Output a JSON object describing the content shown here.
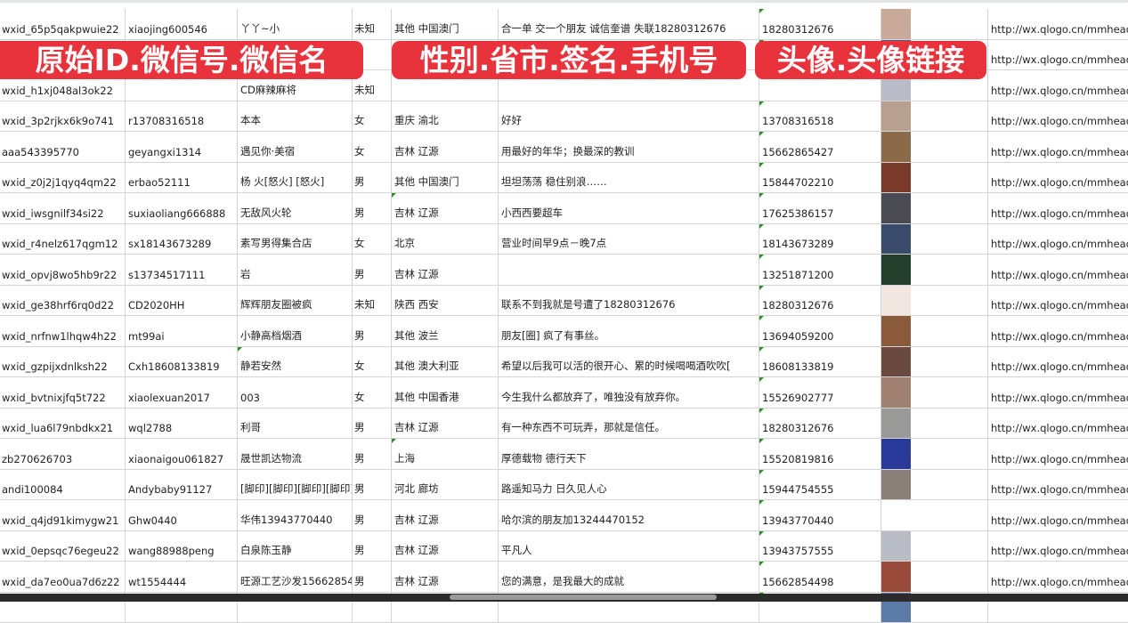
{
  "banners": [
    "原始ID.微信号.微信名",
    "性别.省市.签名.手机号",
    "头像.头像链接"
  ],
  "rows": [
    {
      "id": "wxid_65p5qakpwuie22",
      "wx": "xiaojing600546",
      "name": "丫丫~小",
      "sex": "未知",
      "region": "其他 中国澳门",
      "sign": "合一单 交一个朋友 诚信奎谱 失联18280312676",
      "phone": "18280312676",
      "avatar_color": "#c9a99a",
      "url": "http://wx.qlogo.cn/mmhead"
    },
    {
      "id": "",
      "wx": "",
      "name": "",
      "sex": "",
      "region": "",
      "sign": "",
      "phone": "",
      "avatar_color": "#4a5c8a",
      "url": "http://wx.qlogo.cn/mmhead"
    },
    {
      "id": "wxid_h1xj048al3ok22",
      "wx": "",
      "name": "CD麻辣麻将",
      "sex": "未知",
      "region": "",
      "sign": "",
      "phone": "",
      "avatar_color": "#b8bcc8",
      "url": "http://wx.qlogo.cn/mmhead"
    },
    {
      "id": "wxid_3p2rjkx6k9o741",
      "wx": "r13708316518",
      "name": "本本",
      "sex": "女",
      "region": "重庆 渝北",
      "sign": "好好",
      "phone": "13708316518",
      "avatar_color": "#b8a090",
      "url": "http://wx.qlogo.cn/mmhead"
    },
    {
      "id": "aaa543395770",
      "wx": "geyangxi1314",
      "name": "遇见你·美宿",
      "sex": "女",
      "region": "吉林 辽源",
      "sign": "用最好的年华；换最深的教训",
      "phone": "15662865427",
      "avatar_color": "#8a6a48",
      "url": "http://wx.qlogo.cn/mmhead"
    },
    {
      "id": "wxid_z0j2j1qyq4qm22",
      "wx": "erbao52111",
      "name": "杨 火[怒火] [怒火]",
      "sex": "男",
      "region": "其他 中国澳门",
      "sign": "坦坦荡荡 稳住别浪……",
      "phone": "15844702210",
      "avatar_color": "#7a3a2a",
      "url": "http://wx.qlogo.cn/mmhead"
    },
    {
      "id": "wxid_iwsgnilf34si22",
      "wx": "suxiaoliang666888",
      "name": "无敌风火轮",
      "sex": "男",
      "region": "吉林 辽源",
      "sign": "小西西要超车",
      "phone": "17625386157",
      "avatar_color": "#4a4a52",
      "url": "http://wx.qlogo.cn/mmhead"
    },
    {
      "id": "wxid_r4nelz617qgm12",
      "wx": "sx18143673289",
      "name": "素写男得集合店",
      "sex": "女",
      "region": "北京",
      "sign": "营业时间早9点－晚7点",
      "phone": "18143673289",
      "avatar_color": "#3a4a6a",
      "url": "http://wx.qlogo.cn/mmhead"
    },
    {
      "id": "wxid_opvj8wo5hb9r22",
      "wx": "s13734517111",
      "name": "岩",
      "sex": "男",
      "region": "吉林 辽源",
      "sign": "",
      "phone": "13251871200",
      "avatar_color": "#24402c",
      "url": "http://wx.qlogo.cn/mmhead"
    },
    {
      "id": "wxid_ge38hrf6rq0d22",
      "wx": "CD2020HH",
      "name": "辉辉朋友圈被疯",
      "sex": "未知",
      "region": "陕西 西安",
      "sign": "联系不到我就是号遭了18280312676",
      "phone": "18280312676",
      "avatar_color": "#f2e6e0",
      "url": "http://wx.qlogo.cn/mmhead"
    },
    {
      "id": "wxid_nrfnw1lhqw4h22",
      "wx": "mt99ai",
      "name": "小静高档烟酒",
      "sex": "男",
      "region": "其他 波兰",
      "sign": "朋友[圈] 疯了有事丝。",
      "phone": "13694059200",
      "avatar_color": "#8a5a3a",
      "url": "http://wx.qlogo.cn/mmhead"
    },
    {
      "id": "wxid_gzpijxdnlksh22",
      "wx": "Cxh18608133819",
      "name": "静若安然",
      "sex": "女",
      "region": "其他 澳大利亚",
      "sign": "希望以后我可以活的很开心、累的时候喝喝酒吹吹[",
      "phone": "18608133819",
      "avatar_color": "#6a4a40",
      "url": "http://wx.qlogo.cn/mmhead"
    },
    {
      "id": "wxid_bvtnixjfq5t722",
      "wx": "xiaolexuan2017",
      "name": "003",
      "sex": "女",
      "region": "其他 中国香港",
      "sign": "今生我什么都放弃了，唯独没有放弃你。",
      "phone": "15526902777",
      "avatar_color": "#a08070",
      "url": "http://wx.qlogo.cn/mmhead"
    },
    {
      "id": "wxid_lua6l79nbdkx21",
      "wx": "wql2788",
      "name": "利哥",
      "sex": "男",
      "region": "吉林 辽源",
      "sign": "有一种东西不可玩弄，那就是信任。",
      "phone": "18280312676",
      "avatar_color": "#9a9a98",
      "url": "http://wx.qlogo.cn/mmhead"
    },
    {
      "id": "zb270626703",
      "wx": "xiaonaigou061827",
      "name": "晟世凯达物流",
      "sex": "男",
      "region": "上海",
      "sign": "厚德载物 德行天下",
      "phone": "15520819816",
      "avatar_color": "#2a3a9a",
      "url": "http://wx.qlogo.cn/mmhead"
    },
    {
      "id": "andi100084",
      "wx": "Andybaby91127",
      "name": "[脚印][脚印][脚印][脚印]",
      "sex": "男",
      "region": "河北 廊坊",
      "sign": "路遥知马力 日久见人心",
      "phone": "15944754555",
      "avatar_color": "#8a8078",
      "url": "http://wx.qlogo.cn/mmhead"
    },
    {
      "id": "wxid_q4jd91kimygw21",
      "wx": "Ghw0440",
      "name": "华伟13943770440",
      "sex": "男",
      "region": "吉林 辽源",
      "sign": "哈尔滨的朋友加13244470152",
      "phone": "13943770440",
      "avatar_color": "#ffffff",
      "url": "http://wx.qlogo.cn/mmhead"
    },
    {
      "id": "wxid_0epsqc76egeu22",
      "wx": "wang88988peng",
      "name": "白泉陈玉静",
      "sex": "男",
      "region": "吉林 辽源",
      "sign": "平凡人",
      "phone": "13943757555",
      "avatar_color": "#b8bcc4",
      "url": "http://wx.qlogo.cn/mmhead"
    },
    {
      "id": "wxid_da7eo0ua7d6z22",
      "wx": "wt1554444",
      "name": "旺源工艺沙发15662854",
      "sex": "男",
      "region": "吉林 辽源",
      "sign": "您的满意，是我最大的成就",
      "phone": "15662854498",
      "avatar_color": "#9a4a3a",
      "url": "http://wx.qlogo.cn/mmhead"
    },
    {
      "id": "",
      "wx": "",
      "name": "",
      "sex": "",
      "region": "",
      "sign": "",
      "phone": "",
      "avatar_color": "#5a7aa8",
      "url": ""
    }
  ]
}
